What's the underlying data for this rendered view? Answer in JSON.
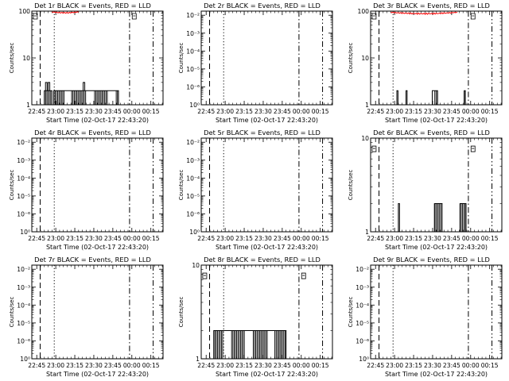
{
  "x_tick_labels": [
    "22:45",
    "23:00",
    "23:15",
    "23:30",
    "23:45",
    "00:00",
    "00:15"
  ],
  "xlabel": "Start Time (02-Oct-17 22:43:20)",
  "ylabel": "Counts/sec",
  "colors": {
    "events": "#000000",
    "lld": "#ff0000"
  },
  "chart_data": [
    {
      "title": "Det 1r BLACK = Events, RED = LLD",
      "type": "line",
      "y_scale": "log",
      "x_range": [
        -1.3,
        33.2
      ],
      "ylim": [
        1,
        100
      ],
      "y_ticks": [
        {
          "v": 1,
          "label": "1"
        },
        {
          "v": 10,
          "label": "10"
        },
        {
          "v": 100,
          "label": "100"
        }
      ],
      "marker_y": 76,
      "events": {
        "segments": [
          [
            2.0,
            4.0
          ],
          [
            4.5,
            21.5
          ]
        ],
        "level": 2,
        "peaks": [
          [
            2.3,
            3
          ],
          [
            3.0,
            3
          ],
          [
            12.2,
            3
          ]
        ]
      },
      "lld": {
        "range": [
          4,
          11
        ],
        "top": 100,
        "dip": 90
      }
    },
    {
      "title": "Det 2r BLACK = Events, RED = LLD",
      "type": "line",
      "y_scale": "log",
      "x_range": [
        -1.3,
        33.2
      ],
      "ylim": [
        1e-07,
        0.017
      ],
      "y_floor": 1,
      "y_ticks": [
        {
          "v": 1,
          "label": "10⁰"
        },
        {
          "v": 1e-06,
          "label": "10⁻⁶"
        },
        {
          "v": 1e-05,
          "label": "10⁻⁵"
        },
        {
          "v": 0.0001,
          "label": "10⁻⁴"
        },
        {
          "v": 0.001,
          "label": "10⁻³"
        },
        {
          "v": 0.01,
          "label": "10⁻²"
        }
      ],
      "marker_y": 1
    },
    {
      "title": "Det 3r BLACK = Events, RED = LLD",
      "type": "line",
      "y_scale": "log",
      "x_range": [
        -1.3,
        33.2
      ],
      "ylim": [
        1,
        100
      ],
      "y_ticks": [
        {
          "v": 1,
          "label": "1"
        },
        {
          "v": 10,
          "label": "10"
        },
        {
          "v": 100,
          "label": "100"
        }
      ],
      "marker_y": 76,
      "events": {
        "segments": [
          [
            5.6,
            5.9
          ],
          [
            8.0,
            8.3
          ],
          [
            14.9,
            16.3
          ],
          [
            23.3,
            23.6
          ]
        ],
        "level": 2,
        "peaks": []
      },
      "lld": {
        "range": [
          4,
          21.5
        ],
        "top": 100,
        "dip": 85
      }
    },
    {
      "title": "Det 4r BLACK = Events, RED = LLD",
      "type": "line",
      "y_scale": "log",
      "x_range": [
        -1.3,
        33.2
      ],
      "ylim": [
        1e-07,
        0.017
      ],
      "y_floor": 1,
      "y_ticks": [
        {
          "v": 1,
          "label": "10⁰"
        },
        {
          "v": 1e-06,
          "label": "10⁻⁶"
        },
        {
          "v": 1e-05,
          "label": "10⁻⁵"
        },
        {
          "v": 0.0001,
          "label": "10⁻⁴"
        },
        {
          "v": 0.001,
          "label": "10⁻³"
        },
        {
          "v": 0.01,
          "label": "10⁻²"
        }
      ],
      "marker_y": 1
    },
    {
      "title": "Det 5r BLACK = Events, RED = LLD",
      "type": "line",
      "y_scale": "log",
      "x_range": [
        -1.3,
        33.2
      ],
      "ylim": [
        1e-07,
        0.017
      ],
      "y_floor": 1,
      "y_ticks": [
        {
          "v": 1,
          "label": "10⁰"
        },
        {
          "v": 1e-06,
          "label": "10⁻⁶"
        },
        {
          "v": 1e-05,
          "label": "10⁻⁵"
        },
        {
          "v": 0.0001,
          "label": "10⁻⁴"
        },
        {
          "v": 0.001,
          "label": "10⁻³"
        },
        {
          "v": 0.01,
          "label": "10⁻²"
        }
      ],
      "marker_y": 1
    },
    {
      "title": "Det 6r BLACK = Events, RED = LLD",
      "type": "line",
      "y_scale": "log",
      "x_range": [
        -1.3,
        33.2
      ],
      "ylim": [
        1,
        10
      ],
      "y_ticks": [
        {
          "v": 1,
          "label": "1"
        },
        {
          "v": 10,
          "label": "10"
        }
      ],
      "marker_y": 7.6,
      "events": {
        "segments": [
          [
            6.0,
            6.3
          ],
          [
            15.5,
            17.5
          ],
          [
            22.2,
            23.8
          ]
        ],
        "level": 2,
        "peaks": []
      }
    },
    {
      "title": "Det 7r BLACK = Events, RED = LLD",
      "type": "line",
      "y_scale": "log",
      "x_range": [
        -1.3,
        33.2
      ],
      "ylim": [
        1e-07,
        0.017
      ],
      "y_floor": 1,
      "y_ticks": [
        {
          "v": 1,
          "label": "10⁰"
        },
        {
          "v": 1e-06,
          "label": "10⁻⁶"
        },
        {
          "v": 1e-05,
          "label": "10⁻⁵"
        },
        {
          "v": 0.0001,
          "label": "10⁻⁴"
        },
        {
          "v": 0.001,
          "label": "10⁻³"
        },
        {
          "v": 0.01,
          "label": "10⁻²"
        }
      ],
      "marker_y": 1
    },
    {
      "title": "Det 8r BLACK = Events, RED = LLD",
      "type": "line",
      "y_scale": "log",
      "x_range": [
        -1.3,
        33.2
      ],
      "ylim": [
        1,
        10
      ],
      "y_ticks": [
        {
          "v": 1,
          "label": "1"
        },
        {
          "v": 10,
          "label": "10"
        }
      ],
      "marker_y": 7.6,
      "events": {
        "segments": [
          [
            2.0,
            21.0
          ]
        ],
        "level": 2,
        "peaks": []
      }
    },
    {
      "title": "Det 9r BLACK = Events, RED = LLD",
      "type": "line",
      "y_scale": "log",
      "x_range": [
        -1.3,
        33.2
      ],
      "ylim": [
        1e-07,
        0.017
      ],
      "y_floor": 1,
      "y_ticks": [
        {
          "v": 1,
          "label": "10⁰"
        },
        {
          "v": 1e-06,
          "label": "10⁻⁶"
        },
        {
          "v": 1e-05,
          "label": "10⁻⁵"
        },
        {
          "v": 0.0001,
          "label": "10⁻⁴"
        },
        {
          "v": 0.001,
          "label": "10⁻³"
        },
        {
          "v": 0.01,
          "label": "10⁻²"
        }
      ],
      "marker_y": 1
    }
  ]
}
